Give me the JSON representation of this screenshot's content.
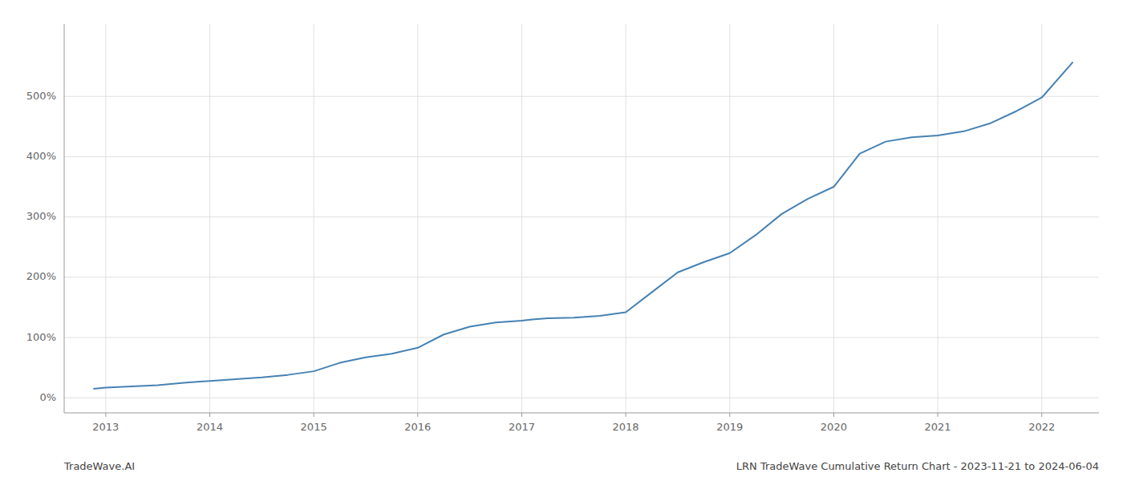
{
  "chart_data": {
    "type": "line",
    "annotations": [
      "TradeWave.AI",
      "LRN TradeWave Cumulative Return Chart - 2023-11-21 to 2024-06-04"
    ],
    "color": "#4682b4",
    "x": [
      2012.88,
      2013.0,
      2013.25,
      2013.5,
      2013.75,
      2014.0,
      2014.25,
      2014.5,
      2014.75,
      2015.0,
      2015.25,
      2015.5,
      2015.75,
      2016.0,
      2016.25,
      2016.5,
      2016.75,
      2017.0,
      2017.1,
      2017.25,
      2017.5,
      2017.75,
      2018.0,
      2018.25,
      2018.5,
      2018.75,
      2019.0,
      2019.25,
      2019.5,
      2019.75,
      2020.0,
      2020.25,
      2020.5,
      2020.75,
      2021.0,
      2021.25,
      2021.5,
      2021.75,
      2022.0,
      2022.3
    ],
    "values": [
      15,
      17,
      19,
      21,
      25,
      28,
      31,
      34,
      38,
      44,
      58,
      67,
      73,
      83,
      105,
      118,
      125,
      128,
      130,
      132,
      133,
      136,
      142,
      175,
      208,
      225,
      240,
      270,
      305,
      330,
      350,
      405,
      425,
      432,
      435,
      442,
      455,
      475,
      498,
      557
    ],
    "xlim": [
      2012.6,
      2022.55
    ],
    "xticks": [
      2013,
      2014,
      2015,
      2016,
      2017,
      2018,
      2019,
      2020,
      2021,
      2022
    ],
    "ylim": [
      -25,
      620
    ],
    "yticks": [
      {
        "value": 0,
        "label": "0%"
      },
      {
        "value": 100,
        "label": "100%"
      },
      {
        "value": 200,
        "label": "200%"
      },
      {
        "value": 300,
        "label": "300%"
      },
      {
        "value": 400,
        "label": "400%"
      },
      {
        "value": 500,
        "label": "500%"
      }
    ],
    "grid": true
  }
}
